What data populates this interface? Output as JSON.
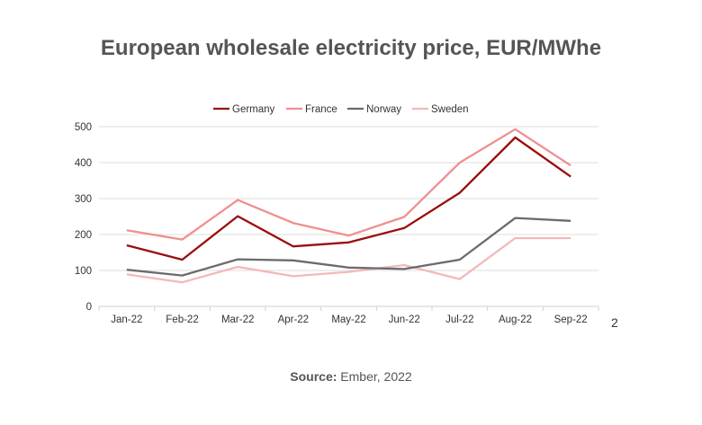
{
  "chart_data": {
    "type": "line",
    "title": "European wholesale electricity price, EUR/MWhe",
    "categories": [
      "Jan-22",
      "Feb-22",
      "Mar-22",
      "Apr-22",
      "May-22",
      "Jun-22",
      "Jul-22",
      "Aug-22",
      "Sep-22"
    ],
    "series": [
      {
        "name": "Germany",
        "color": "#9b0d0d",
        "values": [
          170,
          130,
          251,
          167,
          178,
          218,
          316,
          470,
          361
        ]
      },
      {
        "name": "France",
        "color": "#ef8f8f",
        "values": [
          212,
          186,
          296,
          232,
          197,
          249,
          400,
          493,
          392
        ]
      },
      {
        "name": "Norway",
        "color": "#6b6b6b",
        "values": [
          102,
          86,
          131,
          128,
          108,
          104,
          130,
          246,
          238
        ]
      },
      {
        "name": "Sweden",
        "color": "#f4b8b8",
        "values": [
          89,
          67,
          110,
          84,
          96,
          115,
          76,
          190,
          190
        ]
      }
    ],
    "yticks": [
      "0",
      "100",
      "200",
      "300",
      "400",
      "500"
    ],
    "ylim": [
      0,
      500
    ],
    "grid": true,
    "legend": "top"
  },
  "source": {
    "label": "Source:",
    "text": " Ember, 2022"
  },
  "page_number": "2"
}
